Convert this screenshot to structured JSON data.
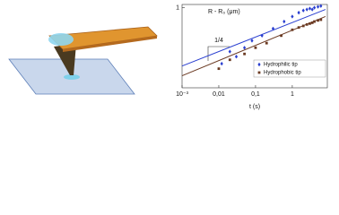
{
  "chart_data": {
    "type": "scatter",
    "x_label": "t (s)",
    "y_label": "R - R₀ (μm)",
    "annotation": "1/4",
    "log_x": true,
    "log_y": true,
    "xlim": [
      0.001,
      9
    ],
    "ylim": [
      0.01,
      1.2
    ],
    "xticks": [
      {
        "value": 0.001,
        "label": "10⁻³"
      },
      {
        "value": 0.01,
        "label": "0,01"
      },
      {
        "value": 0.1,
        "label": "0,1"
      },
      1
    ],
    "yticks": [
      1
    ],
    "legend": "lower right",
    "series": [
      {
        "name": "Hydrophilic tip",
        "color": "#2a3fd0",
        "x": [
          0.012,
          0.02,
          0.03,
          0.05,
          0.08,
          0.15,
          0.3,
          0.6,
          1,
          1.5,
          2,
          2.5,
          3,
          3.5,
          4,
          5,
          6
        ],
        "values": [
          0.04,
          0.08,
          0.06,
          0.1,
          0.15,
          0.2,
          0.3,
          0.45,
          0.6,
          0.75,
          0.85,
          0.9,
          0.95,
          0.9,
          1.0,
          1.05,
          1.1
        ]
      },
      {
        "name": "Hydrophobic tip",
        "color": "#6b3a22",
        "x": [
          0.01,
          0.02,
          0.05,
          0.1,
          0.2,
          0.5,
          1,
          1.5,
          2,
          2.5,
          3,
          3.5,
          4,
          5,
          6
        ],
        "values": [
          0.03,
          0.05,
          0.07,
          0.1,
          0.13,
          0.2,
          0.28,
          0.32,
          0.35,
          0.38,
          0.4,
          0.42,
          0.45,
          0.48,
          0.5
        ]
      }
    ],
    "fit_lines": [
      {
        "color": "#2a3fd0",
        "x": [
          0.001,
          8
        ],
        "values": [
          0.035,
          0.9
        ]
      },
      {
        "color": "#6b3a22",
        "x": [
          0.001,
          8
        ],
        "values": [
          0.02,
          0.6
        ]
      }
    ]
  }
}
